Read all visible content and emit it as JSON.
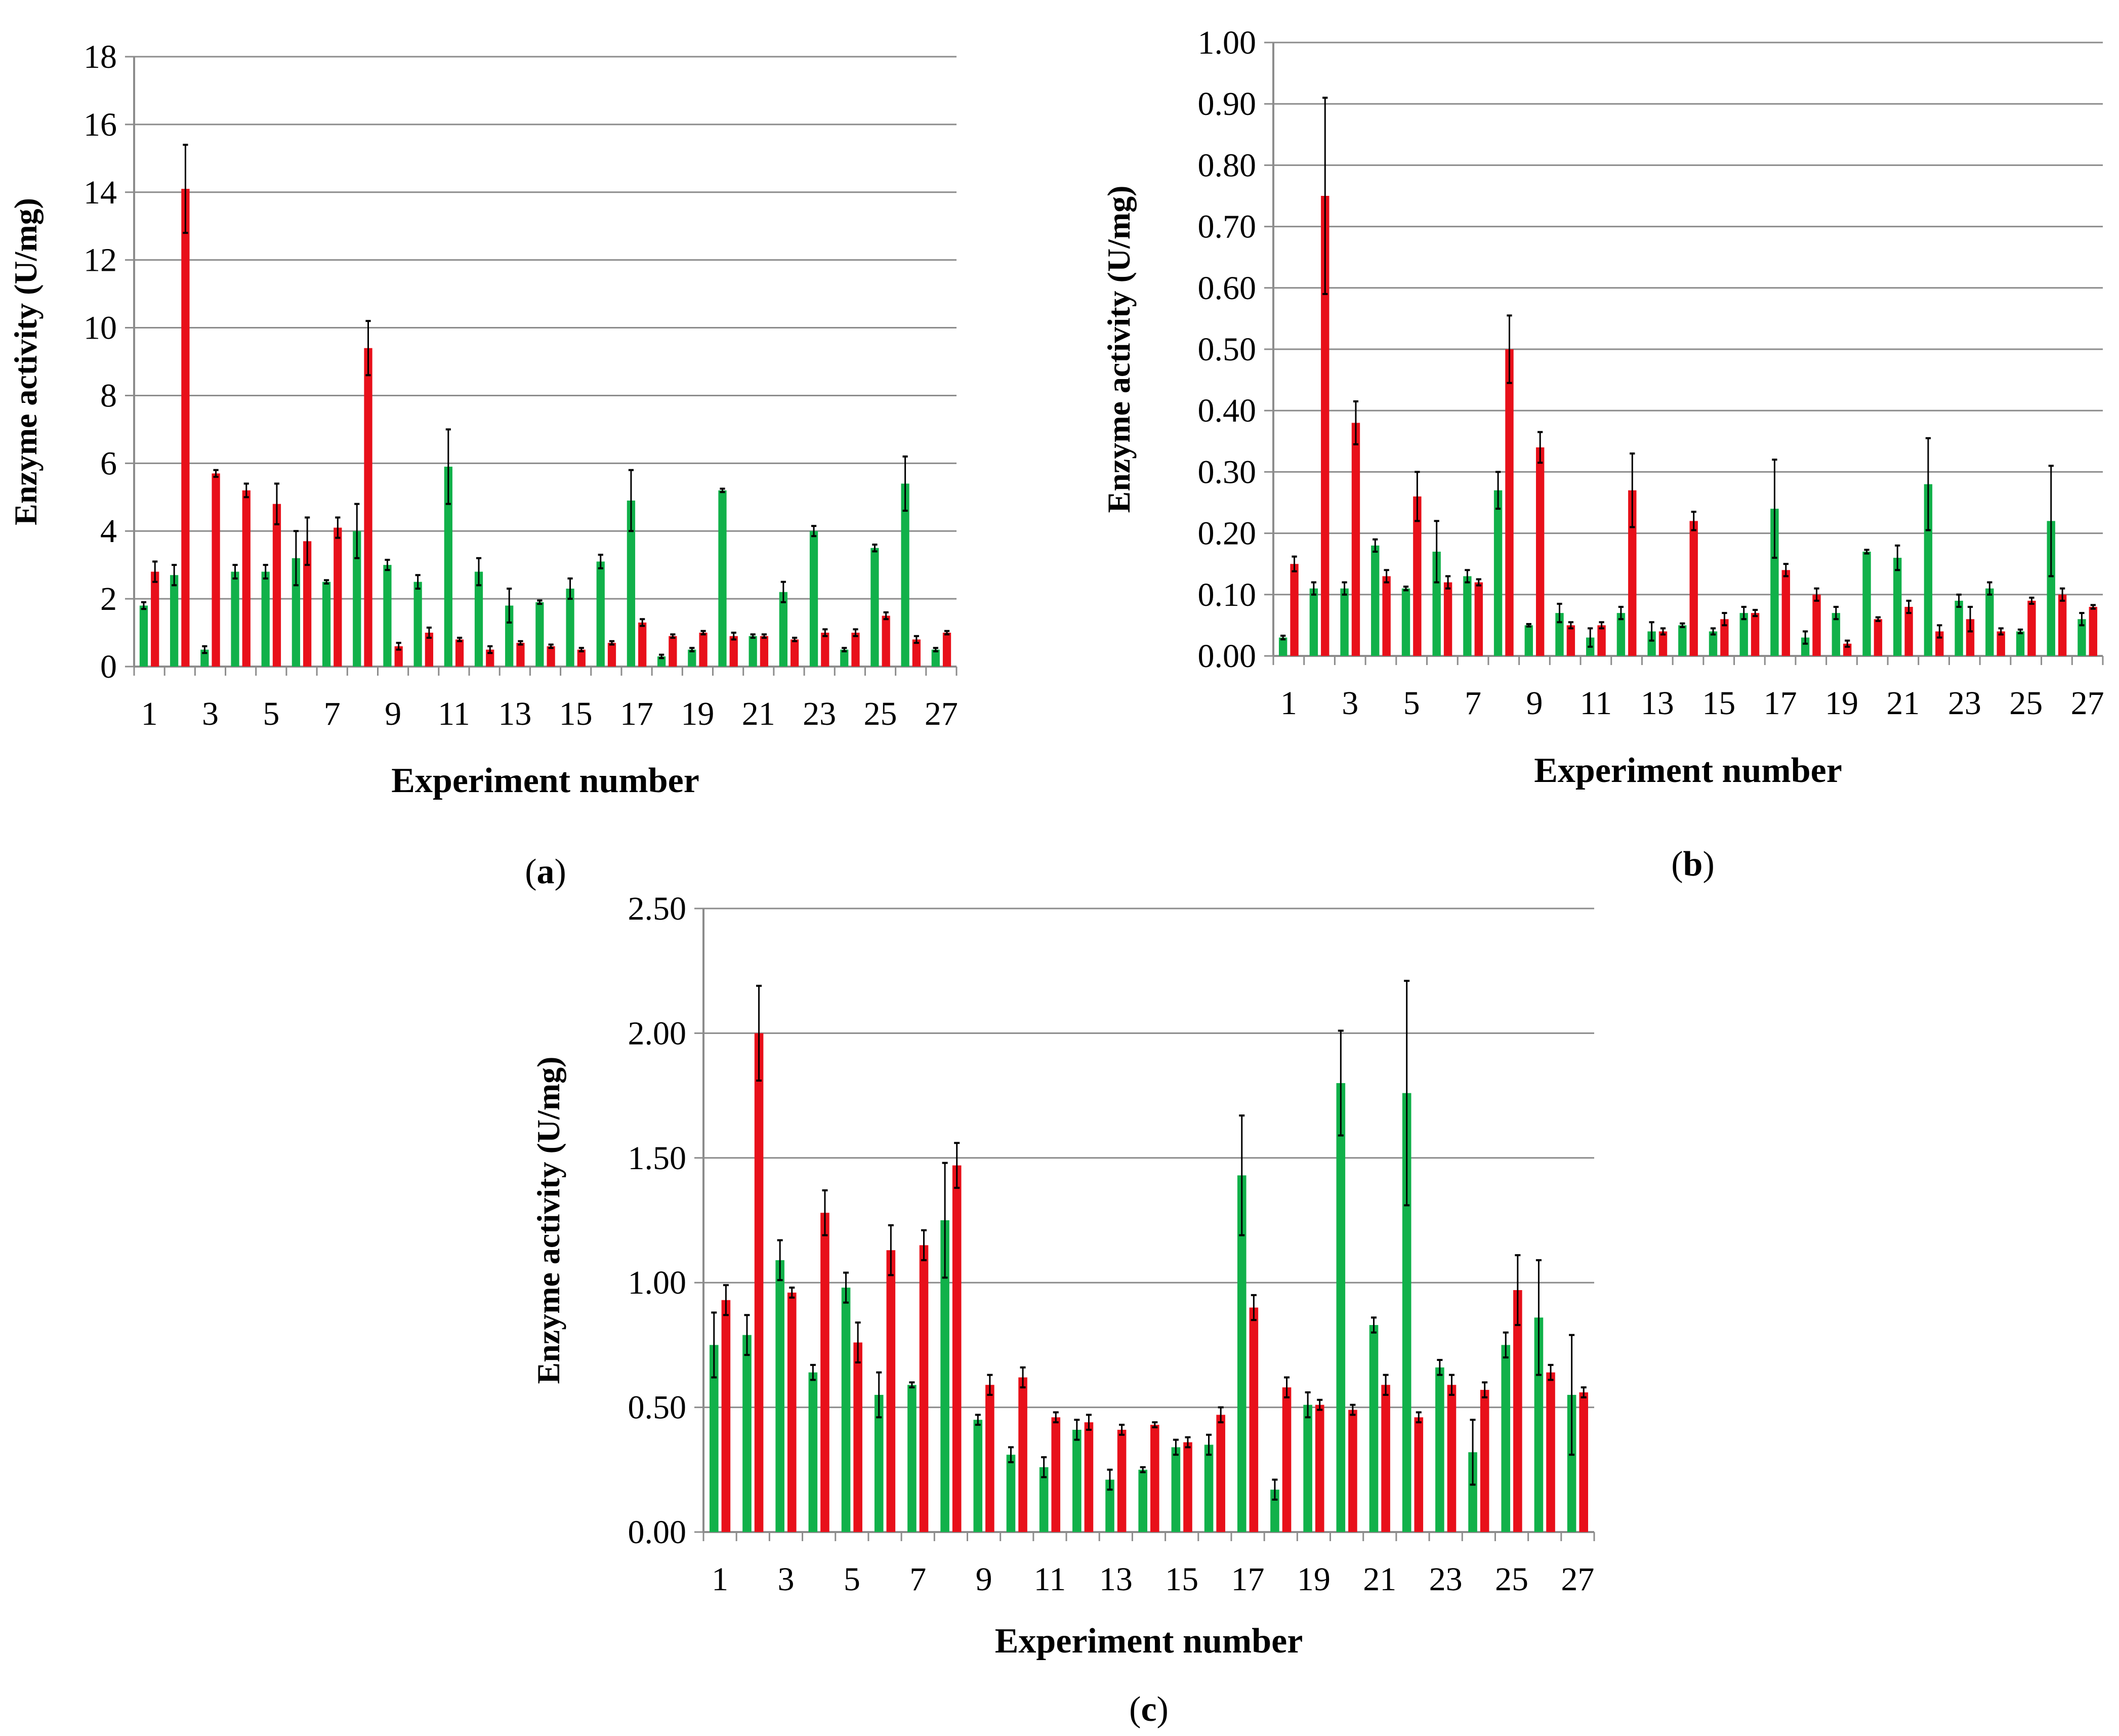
{
  "colors": {
    "series_green": "#11b14a",
    "series_red": "#e8101a",
    "grid": "#8c8c8c",
    "axis": "#8c8c8c",
    "error_bar": "#000000"
  },
  "chart_data": [
    {
      "id": "a",
      "panel_label": "a",
      "type": "bar",
      "xlabel": "Experiment number",
      "ylabel": "Enzyme activity (U/mg)",
      "ylim": [
        0,
        18
      ],
      "yticks": [
        "0",
        "2",
        "4",
        "6",
        "8",
        "10",
        "12",
        "14",
        "16",
        "18"
      ],
      "grid": true,
      "categories": [
        "1",
        "2",
        "3",
        "4",
        "5",
        "6",
        "7",
        "8",
        "9",
        "10",
        "11",
        "12",
        "13",
        "14",
        "15",
        "16",
        "17",
        "18",
        "19",
        "20",
        "21",
        "22",
        "23",
        "24",
        "25",
        "26",
        "27"
      ],
      "xtick_labels": [
        "1",
        "3",
        "5",
        "7",
        "9",
        "11",
        "13",
        "15",
        "17",
        "19",
        "21",
        "23",
        "25",
        "27"
      ],
      "series": [
        {
          "name": "green",
          "values": [
            1.8,
            2.7,
            0.5,
            2.8,
            2.8,
            3.2,
            2.5,
            4.0,
            3.0,
            2.5,
            5.9,
            2.8,
            1.8,
            1.9,
            2.3,
            3.1,
            4.9,
            0.3,
            0.5,
            5.2,
            0.9,
            2.2,
            4.0,
            0.5,
            3.5,
            5.4,
            0.5
          ],
          "errors": [
            0.1,
            0.3,
            0.1,
            0.2,
            0.2,
            0.8,
            0.05,
            0.8,
            0.15,
            0.2,
            1.1,
            0.4,
            0.5,
            0.05,
            0.3,
            0.2,
            0.9,
            0.05,
            0.05,
            0.05,
            0.05,
            0.3,
            0.15,
            0.05,
            0.1,
            0.8,
            0.05
          ]
        },
        {
          "name": "red",
          "values": [
            2.8,
            14.1,
            5.7,
            5.2,
            4.8,
            3.7,
            4.1,
            9.4,
            0.6,
            1.0,
            0.8,
            0.5,
            0.7,
            0.6,
            0.5,
            0.7,
            1.3,
            0.9,
            1.0,
            0.9,
            0.9,
            0.8,
            1.0,
            1.0,
            1.5,
            0.8,
            1.0
          ],
          "errors": [
            0.3,
            1.3,
            0.1,
            0.2,
            0.6,
            0.7,
            0.3,
            0.8,
            0.1,
            0.15,
            0.05,
            0.1,
            0.05,
            0.05,
            0.05,
            0.05,
            0.1,
            0.05,
            0.05,
            0.1,
            0.05,
            0.05,
            0.1,
            0.1,
            0.1,
            0.1,
            0.05
          ]
        }
      ]
    },
    {
      "id": "b",
      "panel_label": "b",
      "type": "bar",
      "xlabel": "Experiment number",
      "ylabel": "Enzyme activity (U/mg)",
      "ylim": [
        0,
        1.0
      ],
      "yticks": [
        "0.00",
        "0.10",
        "0.20",
        "0.30",
        "0.40",
        "0.50",
        "0.60",
        "0.70",
        "0.80",
        "0.90",
        "1.00"
      ],
      "grid": true,
      "categories": [
        "1",
        "2",
        "3",
        "4",
        "5",
        "6",
        "7",
        "8",
        "9",
        "10",
        "11",
        "12",
        "13",
        "14",
        "15",
        "16",
        "17",
        "18",
        "19",
        "20",
        "21",
        "22",
        "23",
        "24",
        "25",
        "26",
        "27"
      ],
      "xtick_labels": [
        "1",
        "3",
        "5",
        "7",
        "9",
        "11",
        "13",
        "15",
        "17",
        "19",
        "21",
        "23",
        "25",
        "27"
      ],
      "series": [
        {
          "name": "green",
          "values": [
            0.03,
            0.11,
            0.11,
            0.18,
            0.11,
            0.17,
            0.13,
            0.27,
            0.05,
            0.07,
            0.03,
            0.07,
            0.04,
            0.05,
            0.04,
            0.07,
            0.24,
            0.03,
            0.07,
            0.17,
            0.16,
            0.28,
            0.09,
            0.11,
            0.04,
            0.22,
            0.06
          ],
          "errors": [
            0.003,
            0.01,
            0.01,
            0.01,
            0.003,
            0.05,
            0.01,
            0.03,
            0.002,
            0.015,
            0.015,
            0.01,
            0.015,
            0.003,
            0.005,
            0.01,
            0.08,
            0.01,
            0.01,
            0.003,
            0.02,
            0.075,
            0.01,
            0.01,
            0.003,
            0.09,
            0.01
          ]
        },
        {
          "name": "red",
          "values": [
            0.15,
            0.75,
            0.38,
            0.13,
            0.26,
            0.12,
            0.12,
            0.5,
            0.34,
            0.05,
            0.05,
            0.27,
            0.04,
            0.22,
            0.06,
            0.07,
            0.14,
            0.1,
            0.02,
            0.06,
            0.08,
            0.04,
            0.06,
            0.04,
            0.09,
            0.1,
            0.08
          ],
          "errors": [
            0.012,
            0.16,
            0.035,
            0.01,
            0.04,
            0.01,
            0.005,
            0.055,
            0.025,
            0.005,
            0.005,
            0.06,
            0.005,
            0.015,
            0.01,
            0.005,
            0.01,
            0.01,
            0.005,
            0.003,
            0.01,
            0.01,
            0.02,
            0.005,
            0.005,
            0.01,
            0.003
          ]
        }
      ]
    },
    {
      "id": "c",
      "panel_label": "c",
      "type": "bar",
      "xlabel": "Experiment number",
      "ylabel": "Enzyme activity (U/mg)",
      "ylim": [
        0,
        2.5
      ],
      "yticks": [
        "0.00",
        "0.50",
        "1.00",
        "1.50",
        "2.00",
        "2.50"
      ],
      "grid": true,
      "categories": [
        "1",
        "2",
        "3",
        "4",
        "5",
        "6",
        "7",
        "8",
        "9",
        "10",
        "11",
        "12",
        "13",
        "14",
        "15",
        "16",
        "17",
        "18",
        "19",
        "20",
        "21",
        "22",
        "23",
        "24",
        "25",
        "26",
        "27"
      ],
      "xtick_labels": [
        "1",
        "3",
        "5",
        "7",
        "9",
        "11",
        "13",
        "15",
        "17",
        "19",
        "21",
        "23",
        "25",
        "27"
      ],
      "series": [
        {
          "name": "green",
          "values": [
            0.75,
            0.79,
            1.09,
            0.64,
            0.98,
            0.55,
            0.59,
            1.25,
            0.45,
            0.31,
            0.26,
            0.41,
            0.21,
            0.25,
            0.34,
            0.35,
            1.43,
            0.17,
            0.51,
            1.8,
            0.83,
            1.76,
            0.66,
            0.32,
            0.75,
            0.86,
            0.55
          ],
          "errors": [
            0.13,
            0.08,
            0.08,
            0.03,
            0.06,
            0.09,
            0.01,
            0.23,
            0.02,
            0.03,
            0.04,
            0.04,
            0.04,
            0.01,
            0.03,
            0.04,
            0.24,
            0.04,
            0.05,
            0.21,
            0.03,
            0.45,
            0.03,
            0.13,
            0.05,
            0.23,
            0.24
          ]
        },
        {
          "name": "red",
          "values": [
            0.93,
            2.0,
            0.96,
            1.28,
            0.76,
            1.13,
            1.15,
            1.47,
            0.59,
            0.62,
            0.46,
            0.44,
            0.41,
            0.43,
            0.36,
            0.47,
            0.9,
            0.58,
            0.51,
            0.49,
            0.59,
            0.46,
            0.59,
            0.57,
            0.97,
            0.64,
            0.56
          ],
          "errors": [
            0.06,
            0.19,
            0.02,
            0.09,
            0.08,
            0.1,
            0.06,
            0.09,
            0.04,
            0.04,
            0.02,
            0.03,
            0.02,
            0.01,
            0.02,
            0.03,
            0.05,
            0.04,
            0.02,
            0.02,
            0.04,
            0.02,
            0.04,
            0.03,
            0.14,
            0.03,
            0.02
          ]
        }
      ]
    }
  ]
}
